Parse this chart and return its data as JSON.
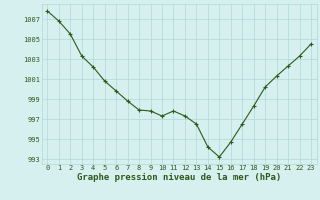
{
  "x": [
    0,
    1,
    2,
    3,
    4,
    5,
    6,
    7,
    8,
    9,
    10,
    11,
    12,
    13,
    14,
    15,
    16,
    17,
    18,
    19,
    20,
    21,
    22,
    23
  ],
  "y": [
    1007.8,
    1006.8,
    1005.5,
    1003.3,
    1002.2,
    1000.8,
    999.8,
    998.8,
    997.9,
    997.8,
    997.3,
    997.8,
    997.3,
    996.5,
    994.2,
    993.2,
    994.7,
    996.5,
    998.3,
    1000.2,
    1001.3,
    1002.3,
    1003.3,
    1004.5
  ],
  "line_color": "#2d5a1b",
  "marker": "+",
  "marker_size": 3.5,
  "marker_color": "#2d5a1b",
  "bg_color": "#d6f0f0",
  "grid_color": "#b0d8d8",
  "label_color": "#2d5a1b",
  "xlabel": "Graphe pression niveau de la mer (hPa)",
  "yticks": [
    993,
    995,
    997,
    999,
    1001,
    1003,
    1005,
    1007
  ],
  "xticks": [
    0,
    1,
    2,
    3,
    4,
    5,
    6,
    7,
    8,
    9,
    10,
    11,
    12,
    13,
    14,
    15,
    16,
    17,
    18,
    19,
    20,
    21,
    22,
    23
  ],
  "ylim": [
    992.5,
    1008.5
  ],
  "xlim": [
    -0.5,
    23.5
  ],
  "tick_fontsize": 5.0,
  "xlabel_fontsize": 6.5
}
